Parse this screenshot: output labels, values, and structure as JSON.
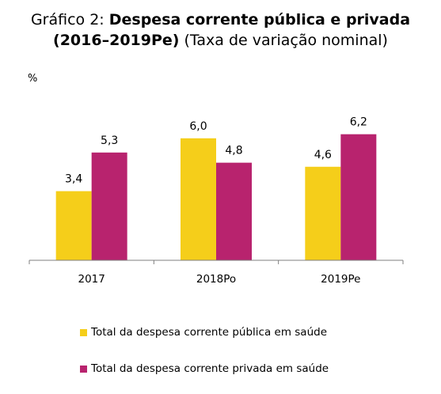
{
  "title": {
    "prefix": "Gráfico 2: ",
    "bold_line1": "Despesa corrente pública e privada",
    "bold_line2": "(2016–2019Pe)",
    "rest_line2": " (Taxa de variação nominal)"
  },
  "chart_data": {
    "type": "bar",
    "ylabel": "%",
    "categories": [
      "2017",
      "2018Po",
      "2019Pe"
    ],
    "ylim": [
      0,
      7
    ],
    "grid": false,
    "legend_position": "bottom",
    "series": [
      {
        "name": "Total da despesa corrente pública em saúde",
        "color": "#F5CE1A",
        "values": [
          3.4,
          6.0,
          4.6
        ],
        "labels": [
          "3,4",
          "6,0",
          "4,6"
        ]
      },
      {
        "name": "Total da despesa corrente privada em saúde",
        "color": "#B8236E",
        "values": [
          5.3,
          4.8,
          6.2
        ],
        "labels": [
          "5,3",
          "4,8",
          "6,2"
        ]
      }
    ]
  }
}
